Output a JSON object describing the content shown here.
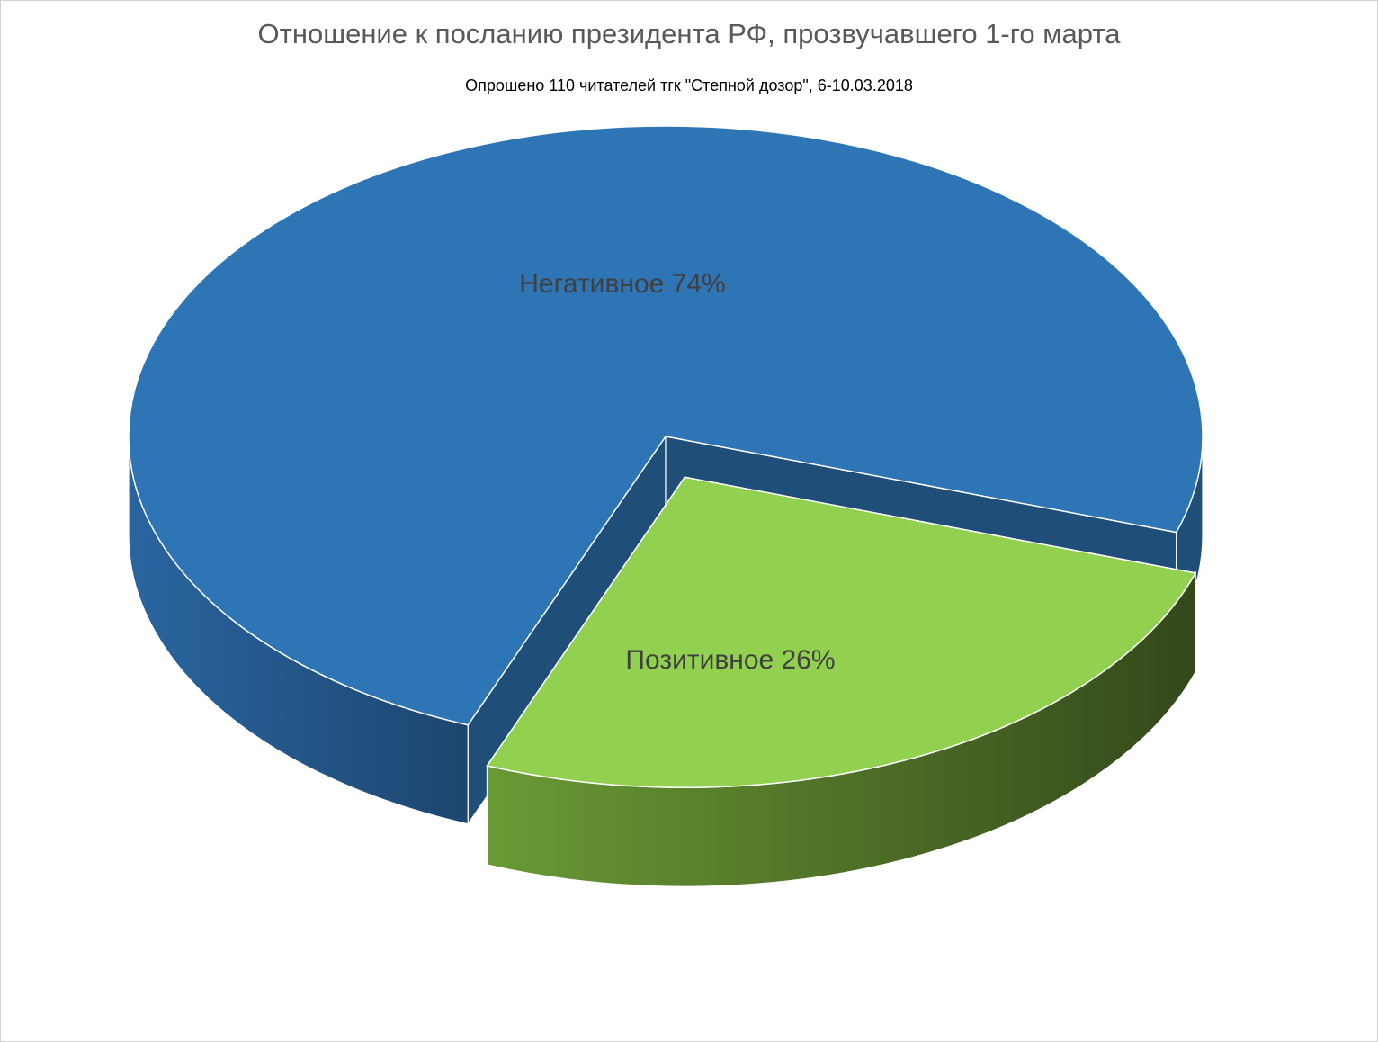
{
  "chart_data": {
    "type": "pie",
    "style": "3d-exploded",
    "title": "Отношение к посланию президента РФ, прозвучавшего 1-го марта",
    "subtitle": "Опрошено 110 читателей тгк \"Степной дозор\", 6-10.03.2018",
    "slices": [
      {
        "label": "Негативное",
        "value": 74,
        "percent_label": "74%",
        "color": "#2e75b6",
        "side_color": "#1f4e79"
      },
      {
        "label": "Позитивное",
        "value": 26,
        "percent_label": "26%",
        "color": "#92d050",
        "side_color": "#4a6b28"
      }
    ]
  }
}
